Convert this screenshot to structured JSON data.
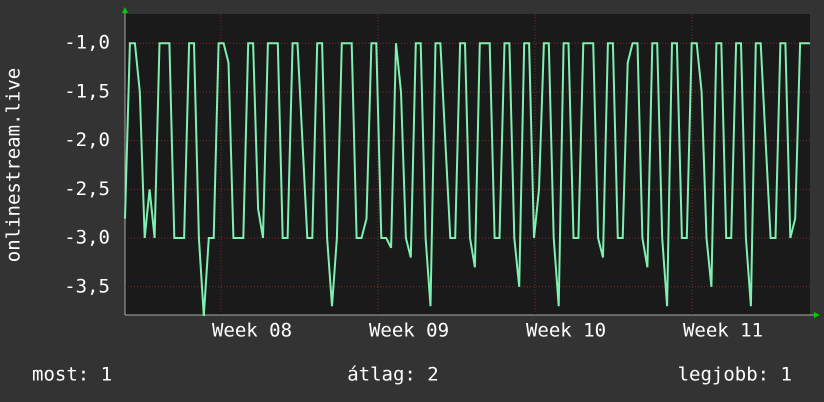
{
  "chart_data": {
    "type": "line",
    "y_label": "onlinestream.live",
    "x": [
      0,
      1,
      2,
      3,
      4,
      5,
      6,
      7,
      8,
      9,
      10,
      11,
      12,
      13,
      14,
      15,
      16,
      17,
      18,
      19,
      20,
      21,
      22,
      23,
      24,
      25,
      26,
      27,
      28,
      29,
      30,
      31,
      32,
      33,
      34,
      35,
      36,
      37,
      38,
      39,
      40,
      41,
      42,
      43,
      44,
      45,
      46,
      47,
      48,
      49,
      50,
      51,
      52,
      53,
      54,
      55,
      56,
      57,
      58,
      59,
      60,
      61,
      62,
      63,
      64,
      65,
      66,
      67,
      68,
      69,
      70,
      71,
      72,
      73,
      74,
      75,
      76,
      77,
      78,
      79,
      80,
      81,
      82,
      83,
      84,
      85,
      86,
      87,
      88,
      89,
      90,
      91,
      92,
      93,
      94,
      95,
      96,
      97,
      98,
      99,
      100,
      101,
      102,
      103,
      104,
      105,
      106,
      107,
      108,
      109,
      110,
      111,
      112,
      113,
      114,
      115,
      116,
      117,
      118,
      119,
      120,
      121,
      122,
      123,
      124,
      125,
      126,
      127,
      128,
      129,
      130,
      131,
      132,
      133,
      134,
      135,
      136,
      137,
      138,
      139
    ],
    "series": [
      {
        "name": "onlinestream.live",
        "color": "#7ff0b0",
        "values": [
          -2.8,
          -1,
          -1,
          -1.5,
          -3,
          -2.5,
          -3,
          -1,
          -1,
          -1,
          -3,
          -3,
          -3,
          -1,
          -1,
          -3,
          -3.8,
          -3,
          -3,
          -1,
          -1,
          -1.2,
          -3,
          -3,
          -3,
          -1,
          -1,
          -2.7,
          -3,
          -1,
          -1,
          -1,
          -3,
          -3,
          -1,
          -1,
          -2,
          -3,
          -3,
          -1,
          -1,
          -3,
          -3.7,
          -3,
          -1,
          -1,
          -1,
          -3,
          -3,
          -2.8,
          -1,
          -1,
          -3,
          -3,
          -3.1,
          -1,
          -1.5,
          -3,
          -3.2,
          -1,
          -1,
          -3,
          -3.7,
          -1,
          -1,
          -2,
          -3,
          -3,
          -1,
          -1,
          -3,
          -3.3,
          -1,
          -1,
          -1,
          -3,
          -3,
          -1,
          -1,
          -3,
          -3.5,
          -1,
          -1,
          -3,
          -2.5,
          -1,
          -1,
          -3,
          -3.7,
          -1,
          -1,
          -3,
          -3,
          -1,
          -1,
          -1,
          -3,
          -3.2,
          -1,
          -1,
          -3,
          -3,
          -1.2,
          -1,
          -1,
          -3,
          -3.3,
          -1,
          -1,
          -3,
          -3.7,
          -1,
          -1,
          -3,
          -3,
          -1,
          -1,
          -1.5,
          -3,
          -3.5,
          -1,
          -1,
          -3,
          -3,
          -1,
          -1,
          -3,
          -3.7,
          -1,
          -1,
          -2,
          -3,
          -3,
          -1,
          -1,
          -3,
          -2.8,
          -1,
          -1,
          -1
        ]
      }
    ],
    "xlim": [
      0,
      139
    ],
    "xticks": [
      {
        "value": 25.77,
        "label": "Week 08"
      },
      {
        "value": 57.63,
        "label": "Week 09"
      },
      {
        "value": 89.49,
        "label": "Week 10"
      },
      {
        "value": 121.35,
        "label": "Week 11"
      }
    ],
    "ylim": [
      -3.79,
      -0.7
    ],
    "yticks": [
      {
        "value": -1,
        "label": "-1,0"
      },
      {
        "value": -1.5,
        "label": "-1,5"
      },
      {
        "value": -2,
        "label": "-2,0"
      },
      {
        "value": -2.5,
        "label": "-2,5"
      },
      {
        "value": -3,
        "label": "-3,0"
      },
      {
        "value": -3.5,
        "label": "-3,5"
      }
    ],
    "grid": true,
    "footer": {
      "last": "most: 1",
      "average": "átlag: 2",
      "best": "legjobb: 1"
    }
  }
}
